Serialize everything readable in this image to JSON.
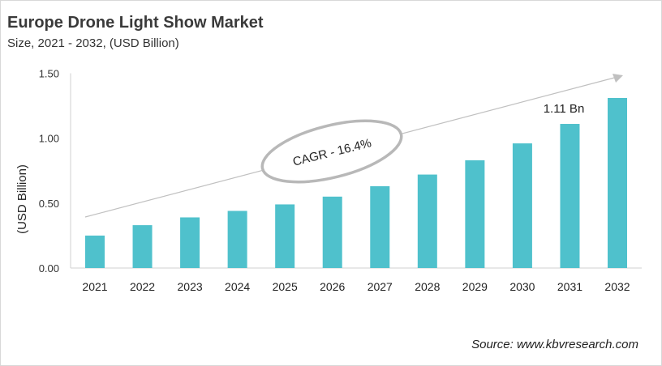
{
  "chart_data": {
    "type": "bar",
    "title": "Europe Drone Light Show Market",
    "subtitle": "Size, 2021 - 2032, (USD Billion)",
    "ylabel": "(USD Billion)",
    "xlabel": "",
    "categories": [
      "2021",
      "2022",
      "2023",
      "2024",
      "2025",
      "2026",
      "2027",
      "2028",
      "2029",
      "2030",
      "2031",
      "2032"
    ],
    "values": [
      0.25,
      0.33,
      0.39,
      0.44,
      0.49,
      0.55,
      0.63,
      0.72,
      0.83,
      0.96,
      1.11,
      1.31
    ],
    "ylim": [
      0,
      1.5
    ],
    "yticks": [
      "0.00",
      "0.50",
      "1.00",
      "1.50"
    ],
    "grid": false,
    "bar_color": "#4fc1cc",
    "annotations": {
      "cagr": "CAGR - 16.4%",
      "value_label": "1.11 Bn"
    }
  },
  "source": "Source: www.kbvresearch.com"
}
